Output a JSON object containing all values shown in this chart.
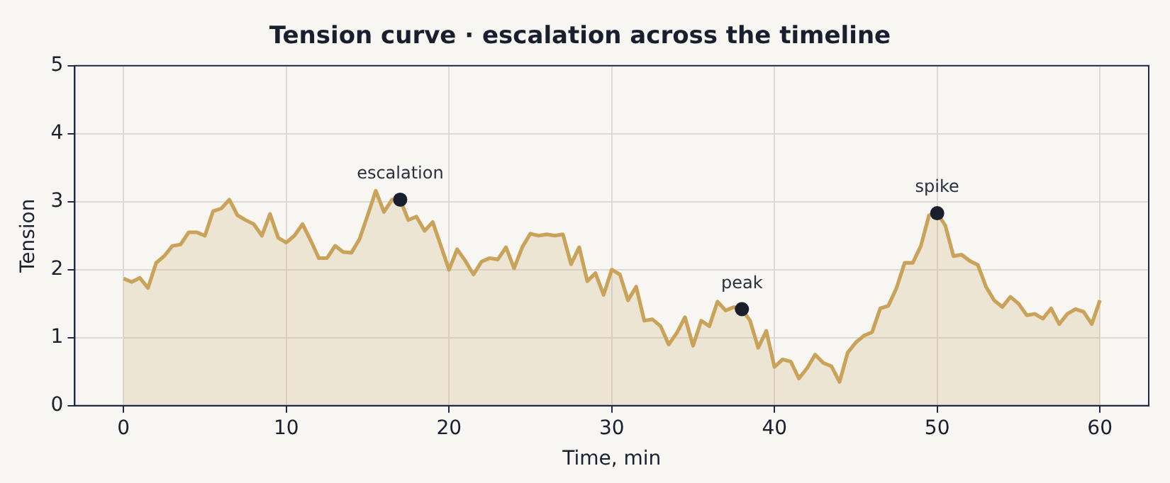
{
  "chart_data": {
    "type": "area",
    "title": "Tension curve · escalation across the timeline",
    "xlabel": "Time, min",
    "ylabel": "Tension",
    "x": [
      0,
      0.5,
      1,
      1.5,
      2,
      2.5,
      3,
      3.5,
      4,
      4.5,
      5,
      5.5,
      6,
      6.5,
      7,
      7.5,
      8,
      8.5,
      9,
      9.5,
      10,
      10.5,
      11,
      11.5,
      12,
      12.5,
      13,
      13.5,
      14,
      14.5,
      15,
      15.5,
      16,
      16.5,
      17,
      17.5,
      18,
      18.5,
      19,
      19.5,
      20,
      20.5,
      21,
      21.5,
      22,
      22.5,
      23,
      23.5,
      24,
      24.5,
      25,
      25.5,
      26,
      26.5,
      27,
      27.5,
      28,
      28.5,
      29,
      29.5,
      30,
      30.5,
      31,
      31.5,
      32,
      32.5,
      33,
      33.5,
      34,
      34.5,
      35,
      35.5,
      36,
      36.5,
      37,
      37.5,
      38,
      38.5,
      39,
      39.5,
      40,
      40.5,
      41,
      41.5,
      42,
      42.5,
      43,
      43.5,
      44,
      44.5,
      45,
      45.5,
      46,
      46.5,
      47,
      47.5,
      48,
      48.5,
      49,
      49.5,
      50,
      50.5,
      51,
      51.5,
      52,
      52.5,
      53,
      53.5,
      54,
      54.5,
      55,
      55.5,
      56,
      56.5,
      57,
      57.5,
      58,
      58.5,
      59,
      59.5,
      60
    ],
    "series": [
      {
        "color": "#c9a35a",
        "values": [
          1.87,
          1.82,
          1.88,
          1.73,
          2.1,
          2.2,
          2.35,
          2.37,
          2.55,
          2.55,
          2.5,
          2.86,
          2.9,
          3.03,
          2.8,
          2.73,
          2.67,
          2.5,
          2.82,
          2.47,
          2.4,
          2.5,
          2.67,
          2.43,
          2.17,
          2.17,
          2.35,
          2.26,
          2.25,
          2.45,
          2.8,
          3.16,
          2.85,
          3.03,
          3.03,
          2.73,
          2.78,
          2.57,
          2.7,
          2.35,
          2.0,
          2.3,
          2.13,
          1.93,
          2.12,
          2.17,
          2.15,
          2.33,
          2.02,
          2.33,
          2.53,
          2.5,
          2.52,
          2.5,
          2.52,
          2.08,
          2.33,
          1.83,
          1.95,
          1.63,
          2.0,
          1.93,
          1.55,
          1.75,
          1.25,
          1.27,
          1.17,
          0.9,
          1.07,
          1.3,
          0.88,
          1.25,
          1.17,
          1.53,
          1.4,
          1.45,
          1.42,
          1.25,
          0.85,
          1.1,
          0.57,
          0.68,
          0.65,
          0.4,
          0.55,
          0.75,
          0.63,
          0.58,
          0.35,
          0.78,
          0.93,
          1.03,
          1.08,
          1.43,
          1.47,
          1.73,
          2.1,
          2.1,
          2.35,
          2.8,
          2.83,
          2.65,
          2.2,
          2.22,
          2.13,
          2.07,
          1.75,
          1.55,
          1.45,
          1.6,
          1.5,
          1.33,
          1.35,
          1.28,
          1.43,
          1.2,
          1.35,
          1.42,
          1.38,
          1.2,
          1.55
        ]
      }
    ],
    "annotations": [
      {
        "text": "escalation",
        "x": 17,
        "y": 3.03
      },
      {
        "text": "peak",
        "x": 38,
        "y": 1.42
      },
      {
        "text": "spike",
        "x": 50,
        "y": 2.83
      }
    ],
    "xlim": [
      -3,
      63
    ],
    "xticks": [
      0,
      10,
      20,
      30,
      40,
      50,
      60
    ],
    "ylim": [
      0,
      5
    ],
    "yticks": [
      0,
      1,
      2,
      3,
      4,
      5
    ],
    "grid": true,
    "marker": "none",
    "line_style": "solid"
  }
}
